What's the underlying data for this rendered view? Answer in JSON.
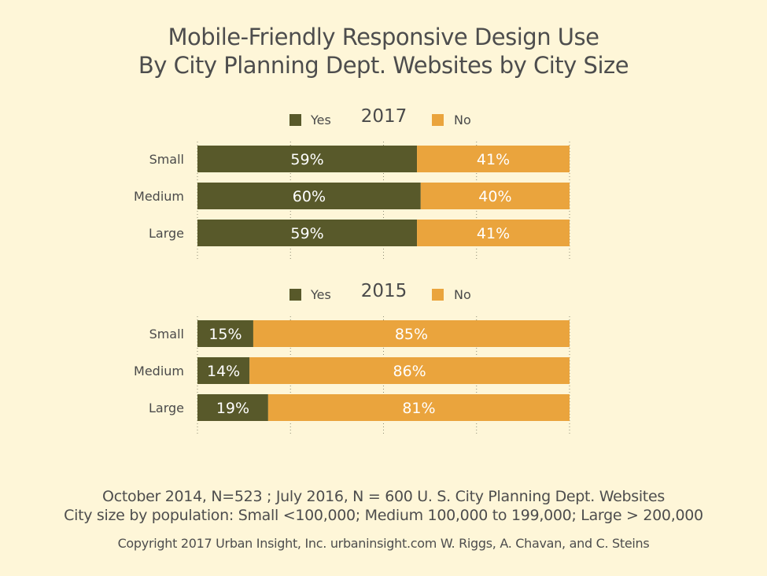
{
  "title_line1": "Mobile-Friendly Responsive Design Use",
  "title_line2": "By City Planning Dept. Websites by City Size",
  "colors": {
    "yes": "#58592a",
    "no": "#eaa43d",
    "background": "#fef6d8",
    "label_text": "#ffffff"
  },
  "chart_data": [
    {
      "type": "bar",
      "orientation": "horizontal",
      "stacked": true,
      "title": "2017",
      "categories": [
        "Small",
        "Medium",
        "Large"
      ],
      "series": [
        {
          "name": "Yes",
          "values": [
            59,
            60,
            59
          ],
          "labels": [
            "59%",
            "60%",
            "59%"
          ]
        },
        {
          "name": "No",
          "values": [
            41,
            40,
            41
          ],
          "labels": [
            "41%",
            "40%",
            "41%"
          ]
        }
      ],
      "xlim": [
        0,
        100
      ],
      "grid": true,
      "legend": "top"
    },
    {
      "type": "bar",
      "orientation": "horizontal",
      "stacked": true,
      "title": "2015",
      "categories": [
        "Small",
        "Medium",
        "Large"
      ],
      "series": [
        {
          "name": "Yes",
          "values": [
            15,
            14,
            19
          ],
          "labels": [
            "15%",
            "14%",
            "19%"
          ]
        },
        {
          "name": "No",
          "values": [
            85,
            86,
            81
          ],
          "labels": [
            "85%",
            "86%",
            "81%"
          ]
        }
      ],
      "xlim": [
        0,
        100
      ],
      "grid": true,
      "legend": "top"
    }
  ],
  "footer": {
    "line1": "October 2014, N=523 ; July 2016, N = 600 U. S. City Planning Dept. Websites",
    "line2": "City size by population:  Small <100,000; Medium 100,000 to 199,000; Large > 200,000",
    "copyright": "Copyright 2017 Urban Insight, Inc. urbaninsight.com  W. Riggs, A. Chavan, and C. Steins"
  }
}
